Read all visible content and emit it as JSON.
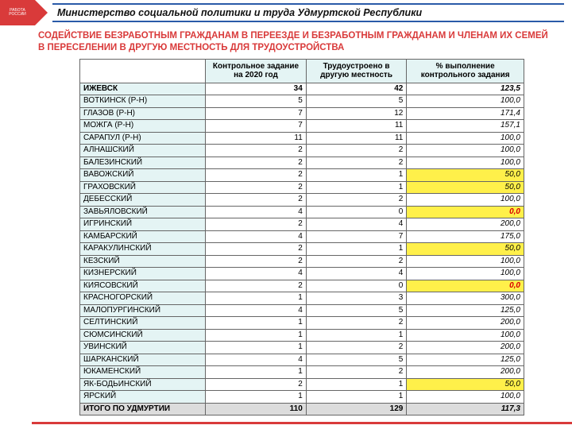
{
  "header": {
    "ministry": "Министерство социальной политики и труда  Удмуртской Республики",
    "logo_top": "РАБОТА",
    "logo_bottom": "РОССИИ"
  },
  "subtitle": "СОДЕЙСТВИЕ БЕЗРАБОТНЫМ ГРАЖДАНАМ В ПЕРЕЕЗДЕ И БЕЗРАБОТНЫМ ГРАЖДАНАМ И ЧЛЕНАМ ИХ СЕМЕЙ В ПЕРЕСЕЛЕНИИ В ДРУГУЮ МЕСТНОСТЬ ДЛЯ ТРУДОУСТРОЙСТВА",
  "table": {
    "columns": [
      "",
      "Контрольное задание на 2020 год",
      "Трудоустроено в другую местность",
      "% выполнение контрольного задания"
    ],
    "rows": [
      {
        "name": "ИЖЕВСК",
        "c1": "34",
        "c2": "42",
        "c3": "123,5",
        "bold": true
      },
      {
        "name": "ВОТКИНСК (Р-Н)",
        "c1": "5",
        "c2": "5",
        "c3": "100,0"
      },
      {
        "name": "ГЛАЗОВ (Р-Н)",
        "c1": "7",
        "c2": "12",
        "c3": "171,4"
      },
      {
        "name": "МОЖГА (Р-Н)",
        "c1": "7",
        "c2": "11",
        "c3": "157,1"
      },
      {
        "name": "САРАПУЛ (Р-Н)",
        "c1": "11",
        "c2": "11",
        "c3": "100,0"
      },
      {
        "name": "АЛНАШСКИЙ",
        "c1": "2",
        "c2": "2",
        "c3": "100,0"
      },
      {
        "name": "БАЛЕЗИНСКИЙ",
        "c1": "2",
        "c2": "2",
        "c3": "100,0"
      },
      {
        "name": "ВАВОЖСКИЙ",
        "c1": "2",
        "c2": "1",
        "c3": "50,0",
        "hl": true
      },
      {
        "name": "ГРАХОВСКИЙ",
        "c1": "2",
        "c2": "1",
        "c3": "50,0",
        "hl": true
      },
      {
        "name": "ДЕБЕССКИЙ",
        "c1": "2",
        "c2": "2",
        "c3": "100,0"
      },
      {
        "name": "ЗАВЬЯЛОВСКИЙ",
        "c1": "4",
        "c2": "0",
        "c3": "0,0",
        "hl": true,
        "red": true
      },
      {
        "name": "ИГРИНСКИЙ",
        "c1": "2",
        "c2": "4",
        "c3": "200,0"
      },
      {
        "name": "КАМБАРСКИЙ",
        "c1": "4",
        "c2": "7",
        "c3": "175,0"
      },
      {
        "name": "КАРАКУЛИНСКИЙ",
        "c1": "2",
        "c2": "1",
        "c3": "50,0",
        "hl": true
      },
      {
        "name": "КЕЗСКИЙ",
        "c1": "2",
        "c2": "2",
        "c3": "100,0"
      },
      {
        "name": "КИЗНЕРСКИЙ",
        "c1": "4",
        "c2": "4",
        "c3": "100,0"
      },
      {
        "name": "КИЯСОВСКИЙ",
        "c1": "2",
        "c2": "0",
        "c3": "0,0",
        "hl": true,
        "red": true
      },
      {
        "name": "КРАСНОГОРСКИЙ",
        "c1": "1",
        "c2": "3",
        "c3": "300,0"
      },
      {
        "name": "МАЛОПУРГИНСКИЙ",
        "c1": "4",
        "c2": "5",
        "c3": "125,0"
      },
      {
        "name": "СЕЛТИНСКИЙ",
        "c1": "1",
        "c2": "2",
        "c3": "200,0"
      },
      {
        "name": "СЮМСИНСКИЙ",
        "c1": "1",
        "c2": "1",
        "c3": "100,0"
      },
      {
        "name": "УВИНСКИЙ",
        "c1": "1",
        "c2": "2",
        "c3": "200,0"
      },
      {
        "name": "ШАРКАНСКИЙ",
        "c1": "4",
        "c2": "5",
        "c3": "125,0"
      },
      {
        "name": "ЮКАМЕНСКИЙ",
        "c1": "1",
        "c2": "2",
        "c3": "200,0"
      },
      {
        "name": "ЯК-БОДЬИНСКИЙ",
        "c1": "2",
        "c2": "1",
        "c3": "50,0",
        "hl": true
      },
      {
        "name": "ЯРСКИЙ",
        "c1": "1",
        "c2": "1",
        "c3": "100,0"
      }
    ],
    "totals": {
      "name": "ИТОГО ПО УДМУРТИИ",
      "c1": "110",
      "c2": "129",
      "c3": "117,3"
    }
  },
  "colors": {
    "accent_red": "#d93a3a",
    "accent_blue": "#2a5aa8",
    "header_cell": "#e4f4f4",
    "highlight_yellow": "#fff04a",
    "totals_bg": "#dcdcdc"
  }
}
